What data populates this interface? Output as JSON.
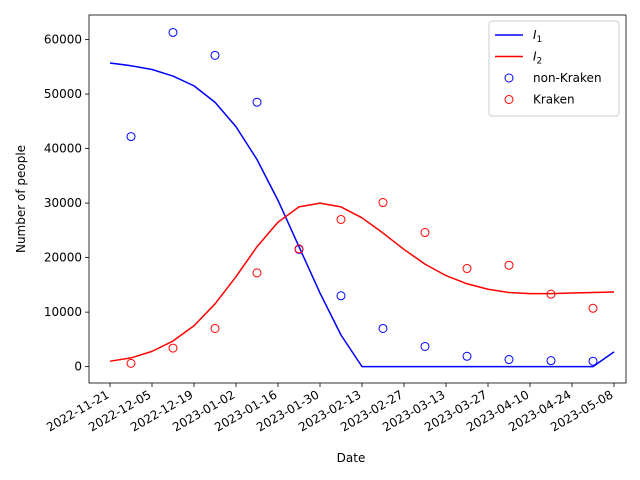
{
  "chart_data": {
    "type": "line",
    "xlabel": "Date",
    "ylabel": "Number of people",
    "xlim": [
      "2022-11-14",
      "2023-05-12"
    ],
    "ylim": [
      -3000,
      64500
    ],
    "x_ticks": [
      "2022-11-21",
      "2022-12-05",
      "2022-12-19",
      "2023-01-02",
      "2023-01-16",
      "2023-01-30",
      "2023-02-13",
      "2023-02-27",
      "2023-03-13",
      "2023-03-27",
      "2023-04-10",
      "2023-04-24",
      "2023-05-08"
    ],
    "y_ticks": [
      0,
      10000,
      20000,
      30000,
      40000,
      50000,
      60000
    ],
    "y_tick_labels": [
      "0",
      "10000",
      "20000",
      "30000",
      "40000",
      "50000",
      "60000"
    ],
    "grid": false,
    "legend_position": "top-right",
    "series": [
      {
        "name": "I1",
        "label_main": "I",
        "label_sub": "1",
        "kind": "line",
        "color": "#0000ff",
        "x": [
          "2022-11-21",
          "2022-11-28",
          "2022-12-05",
          "2022-12-12",
          "2022-12-19",
          "2022-12-26",
          "2023-01-02",
          "2023-01-09",
          "2023-01-16",
          "2023-01-23",
          "2023-01-30",
          "2023-02-06",
          "2023-02-13",
          "2023-02-20",
          "2023-02-27",
          "2023-03-06",
          "2023-03-13",
          "2023-03-20",
          "2023-03-27",
          "2023-04-03",
          "2023-04-10",
          "2023-04-17",
          "2023-04-24",
          "2023-05-01",
          "2023-05-08"
        ],
        "y": [
          55700,
          55200,
          54500,
          53300,
          51500,
          48500,
          44000,
          38000,
          30500,
          22000,
          13500,
          5800,
          0,
          0,
          0,
          0,
          0,
          0,
          0,
          0,
          0,
          0,
          0,
          0,
          2700
        ]
      },
      {
        "name": "I2",
        "label_main": "I",
        "label_sub": "2",
        "kind": "line",
        "color": "#ff0000",
        "x": [
          "2022-11-21",
          "2022-11-28",
          "2022-12-05",
          "2022-12-12",
          "2022-12-19",
          "2022-12-26",
          "2023-01-02",
          "2023-01-09",
          "2023-01-16",
          "2023-01-23",
          "2023-01-30",
          "2023-02-06",
          "2023-02-13",
          "2023-02-20",
          "2023-02-27",
          "2023-03-06",
          "2023-03-13",
          "2023-03-20",
          "2023-03-27",
          "2023-04-03",
          "2023-04-10",
          "2023-04-17",
          "2023-04-24",
          "2023-05-01",
          "2023-05-08"
        ],
        "y": [
          1000,
          1600,
          2800,
          4700,
          7500,
          11500,
          16500,
          22000,
          26500,
          29300,
          30000,
          29300,
          27300,
          24500,
          21500,
          18800,
          16700,
          15200,
          14200,
          13600,
          13400,
          13400,
          13500,
          13600,
          13700
        ]
      },
      {
        "name": "non-Kraken",
        "kind": "scatter",
        "color": "#0000ff",
        "x": [
          "2022-11-28",
          "2022-12-12",
          "2022-12-26",
          "2023-01-09",
          "2023-01-23",
          "2023-02-06",
          "2023-02-20",
          "2023-03-06",
          "2023-03-20",
          "2023-04-03",
          "2023-04-17",
          "2023-05-01"
        ],
        "y": [
          42200,
          61300,
          57100,
          48500,
          21500,
          13000,
          7000,
          3700,
          1900,
          1300,
          1100,
          1000
        ]
      },
      {
        "name": "Kraken",
        "kind": "scatter",
        "color": "#ff0000",
        "x": [
          "2022-11-28",
          "2022-12-12",
          "2022-12-26",
          "2023-01-09",
          "2023-01-23",
          "2023-02-06",
          "2023-02-20",
          "2023-03-06",
          "2023-03-20",
          "2023-04-03",
          "2023-04-17",
          "2023-05-01"
        ],
        "y": [
          600,
          3400,
          7000,
          17200,
          21600,
          27000,
          30100,
          24600,
          18000,
          18600,
          13300,
          10700
        ]
      }
    ]
  }
}
